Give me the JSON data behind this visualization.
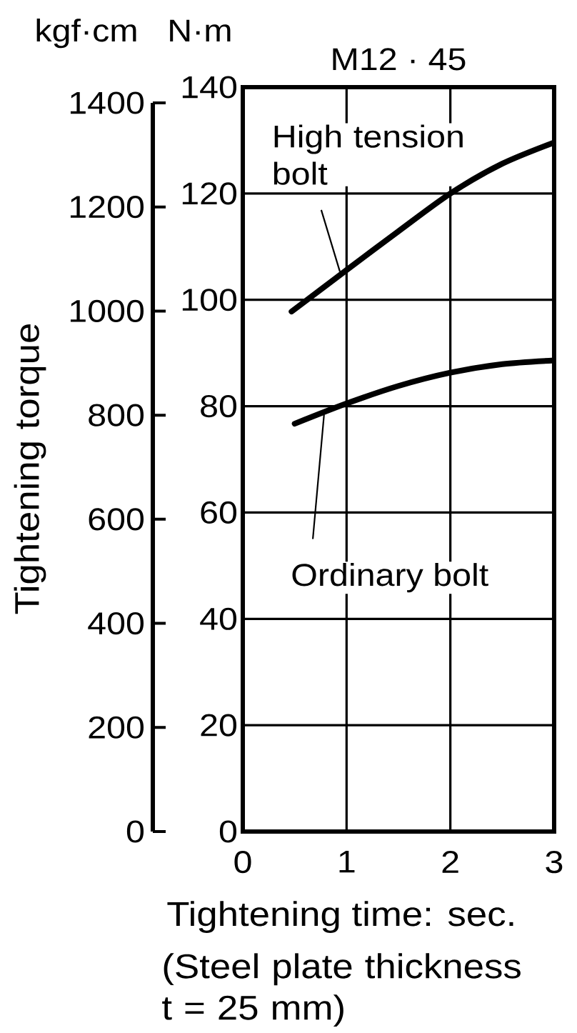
{
  "chart_data": {
    "type": "line",
    "title": "M12 · 45",
    "xlabel": "Tightening time: sec.",
    "ylabel": "Tightening torque",
    "annotations": [
      "kgf·cm",
      "N·m",
      "(Steel plate thickness t = 25 mm)"
    ],
    "xlim": [
      0,
      3
    ],
    "xticks": [
      0,
      1,
      2,
      3
    ],
    "ylim": [
      0,
      1400
    ],
    "yticks": [
      0,
      200,
      400,
      600,
      800,
      1000,
      1200,
      1400
    ],
    "y2lim": [
      0,
      140
    ],
    "y2ticks": [
      0,
      20,
      40,
      60,
      80,
      100,
      120,
      140
    ],
    "grid": true,
    "series": [
      {
        "name": "High tension bolt",
        "axis": "y2",
        "color": "#000000",
        "x": [
          0.47,
          1,
          1.5,
          2,
          2.5,
          3
        ],
        "values": [
          97.8,
          105.6,
          112.9,
          120,
          125.6,
          129.6
        ]
      },
      {
        "name": "Ordinary bolt",
        "axis": "y2",
        "color": "#000000",
        "x": [
          0.5,
          1,
          1.5,
          2,
          2.5,
          3
        ],
        "values": [
          76.7,
          80.5,
          83.8,
          86.3,
          87.9,
          88.6
        ]
      }
    ]
  }
}
